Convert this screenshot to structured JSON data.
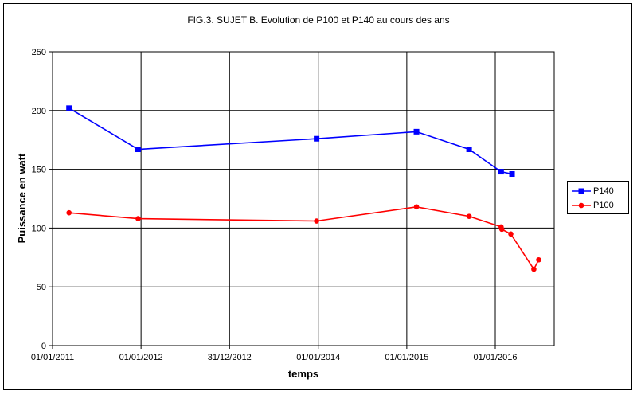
{
  "chart_data": {
    "type": "line",
    "title": "FIG.3. SUJET B. Evolution de P100 et P140 au cours des ans",
    "xlabel": "temps",
    "ylabel": "Puissance en watt",
    "x_axis_type": "date",
    "xlim": [
      "2011-01-01",
      "2016-08-31"
    ],
    "ylim": [
      0,
      250
    ],
    "y_ticks": [
      0,
      50,
      100,
      150,
      200,
      250
    ],
    "x_ticks": [
      "2011-01-01",
      "2012-01-01",
      "2012-12-31",
      "2014-01-01",
      "2015-01-01",
      "2016-01-01"
    ],
    "x_tick_labels": [
      "01/01/2011",
      "01/01/2012",
      "31/12/2012",
      "01/01/2014",
      "01/01/2015",
      "01/01/2016"
    ],
    "grid": true,
    "legend_position": "right",
    "series": [
      {
        "name": "P140",
        "color": "#0000ff",
        "marker": "square",
        "points": [
          [
            "2011-03-10",
            202
          ],
          [
            "2011-12-20",
            167
          ],
          [
            "2013-12-25",
            176
          ],
          [
            "2015-02-10",
            182
          ],
          [
            "2015-09-15",
            167
          ],
          [
            "2016-01-25",
            148
          ],
          [
            "2016-03-10",
            146
          ]
        ]
      },
      {
        "name": "P100",
        "color": "#ff0000",
        "marker": "circle",
        "points": [
          [
            "2011-03-10",
            113
          ],
          [
            "2011-12-20",
            108
          ],
          [
            "2013-12-25",
            106
          ],
          [
            "2015-02-10",
            118
          ],
          [
            "2015-09-15",
            110
          ],
          [
            "2016-01-25",
            101
          ],
          [
            "2016-01-28",
            99
          ],
          [
            "2016-03-05",
            95
          ],
          [
            "2016-06-08",
            65
          ],
          [
            "2016-06-28",
            73
          ]
        ]
      }
    ]
  }
}
